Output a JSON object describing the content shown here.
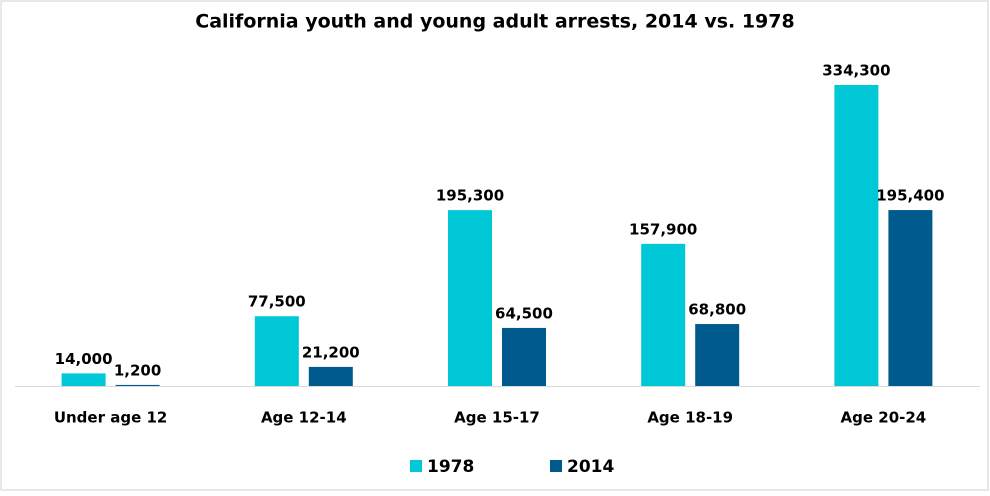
{
  "chart_data": {
    "type": "bar",
    "title": "California youth and young adult arrests, 2014 vs. 1978",
    "categories": [
      "Under age 12",
      "Age 12-14",
      "Age 15-17",
      "Age 18-19",
      "Age 20-24"
    ],
    "series": [
      {
        "name": "1978",
        "color": "#00c8d7",
        "values": [
          14000,
          77500,
          195300,
          157900,
          334300
        ],
        "value_labels": [
          "14,000",
          "77,500",
          "195,300",
          "157,900",
          "334,300"
        ]
      },
      {
        "name": "2014",
        "color": "#005a8e",
        "values": [
          1200,
          21200,
          64500,
          68800,
          195400
        ],
        "value_labels": [
          "1,200",
          "21,200",
          "64,500",
          "68,800",
          "195,400"
        ]
      }
    ],
    "legend": "bottom"
  }
}
